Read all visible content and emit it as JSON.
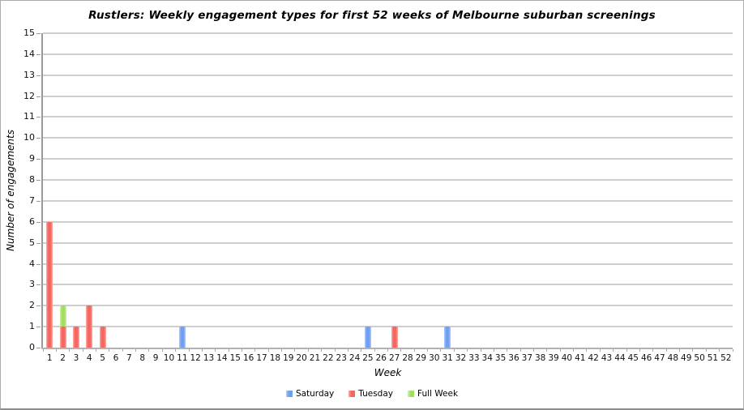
{
  "chart_data": {
    "type": "bar",
    "stacked": true,
    "title": "Rustlers: Weekly engagement types for first 52 weeks of Melbourne suburban screenings",
    "xlabel": "Week",
    "ylabel": "Number of engagements",
    "ylim": [
      0,
      15
    ],
    "ytick_step": 1,
    "yticks": [
      0,
      1,
      2,
      3,
      4,
      5,
      6,
      7,
      8,
      9,
      10,
      11,
      12,
      13,
      14,
      15
    ],
    "x_ticks": [
      1,
      2,
      3,
      4,
      5,
      6,
      7,
      8,
      9,
      10,
      11,
      12,
      13,
      14,
      15,
      16,
      17,
      18,
      19,
      20,
      21,
      22,
      23,
      24,
      25,
      26,
      27,
      28,
      29,
      30,
      31,
      32,
      33,
      34,
      35,
      36,
      37,
      38,
      39,
      40,
      41,
      42,
      43,
      44,
      45,
      46,
      47,
      48,
      49,
      50,
      51,
      52
    ],
    "grid": true,
    "legend_position": "bottom",
    "series": [
      {
        "name": "Saturday",
        "color": "#6f9ff0",
        "color_light": "#b0cbf8",
        "values": [
          0,
          0,
          0,
          0,
          0,
          0,
          0,
          0,
          0,
          0,
          1,
          0,
          0,
          0,
          0,
          0,
          0,
          0,
          0,
          0,
          0,
          0,
          0,
          0,
          1,
          0,
          0,
          0,
          0,
          0,
          1,
          0,
          0,
          0,
          0,
          0,
          0,
          0,
          0,
          0,
          0,
          0,
          0,
          0,
          0,
          0,
          0,
          0,
          0,
          0,
          0,
          0
        ]
      },
      {
        "name": "Tuesday",
        "color": "#f4665f",
        "color_light": "#fbaca6",
        "values": [
          6,
          1,
          1,
          2,
          1,
          0,
          0,
          0,
          0,
          0,
          0,
          0,
          0,
          0,
          0,
          0,
          0,
          0,
          0,
          0,
          0,
          0,
          0,
          0,
          0,
          0,
          1,
          0,
          0,
          0,
          0,
          0,
          0,
          0,
          0,
          0,
          0,
          0,
          0,
          0,
          0,
          0,
          0,
          0,
          0,
          0,
          0,
          0,
          0,
          0,
          0,
          0
        ]
      },
      {
        "name": "Full Week",
        "color": "#a3dd60",
        "color_light": "#d4f0ae",
        "values": [
          0,
          1,
          0,
          0,
          0,
          0,
          0,
          0,
          0,
          0,
          0,
          0,
          0,
          0,
          0,
          0,
          0,
          0,
          0,
          0,
          0,
          0,
          0,
          0,
          0,
          0,
          0,
          0,
          0,
          0,
          0,
          0,
          0,
          0,
          0,
          0,
          0,
          0,
          0,
          0,
          0,
          0,
          0,
          0,
          0,
          0,
          0,
          0,
          0,
          0,
          0,
          0
        ]
      }
    ]
  }
}
